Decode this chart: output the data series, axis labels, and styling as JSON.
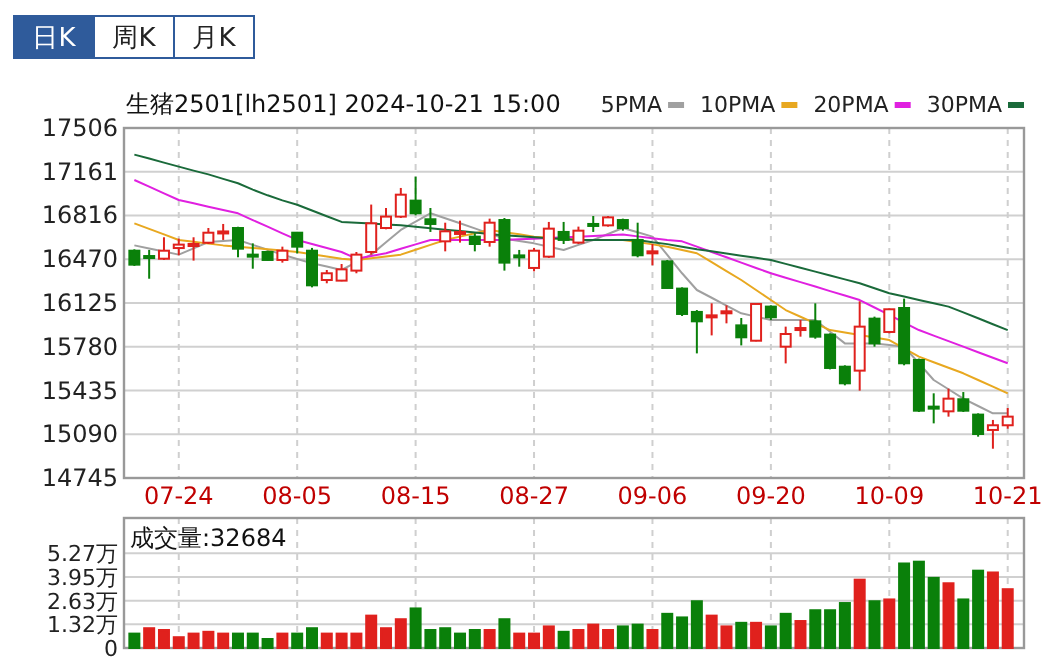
{
  "chart_data": [
    {
      "type": "candlestick",
      "title": "生猪2501[lh2501] 2024-10-21 15:00",
      "annotations": [
        "日K",
        "周K",
        "月K"
      ],
      "categories": [
        null,
        null,
        null,
        "07-24",
        null,
        null,
        null,
        null,
        null,
        null,
        null,
        "08-05",
        null,
        null,
        null,
        null,
        null,
        null,
        null,
        "08-15",
        null,
        null,
        null,
        null,
        null,
        null,
        null,
        "08-27",
        null,
        null,
        null,
        null,
        null,
        null,
        null,
        "09-06",
        null,
        null,
        null,
        null,
        null,
        null,
        null,
        "09-20",
        null,
        null,
        null,
        null,
        null,
        null,
        null,
        "10-09",
        null,
        null,
        null,
        null,
        null,
        null,
        null,
        "10-21"
      ],
      "ohlc": [
        [
          16538,
          16549,
          16418,
          16428
        ],
        [
          16496,
          16544,
          16317,
          16486
        ],
        [
          16475,
          16644,
          16465,
          16538
        ],
        [
          16559,
          16633,
          16502,
          16586
        ],
        [
          16575,
          16644,
          16460,
          16591
        ],
        [
          16601,
          16717,
          16591,
          16680
        ],
        [
          16680,
          16749,
          16623,
          16690
        ],
        [
          16717,
          16727,
          16486,
          16554
        ],
        [
          16507,
          16596,
          16396,
          16491
        ],
        [
          16528,
          16538,
          16460,
          16465
        ],
        [
          16465,
          16570,
          16444,
          16538
        ],
        [
          16680,
          16686,
          16517,
          16570
        ],
        [
          16538,
          16560,
          16249,
          16265
        ],
        [
          16307,
          16386,
          16281,
          16360
        ],
        [
          16302,
          16433,
          16297,
          16391
        ],
        [
          16381,
          16528,
          16360,
          16507
        ],
        [
          16528,
          16902,
          16507,
          16754
        ],
        [
          16717,
          16875,
          16707,
          16807
        ],
        [
          16807,
          17033,
          16796,
          16980
        ],
        [
          16933,
          17122,
          16817,
          16833
        ],
        [
          16786,
          16875,
          16686,
          16749
        ],
        [
          16612,
          16759,
          16533,
          16691
        ],
        [
          16675,
          16775,
          16602,
          16686
        ],
        [
          16649,
          16675,
          16533,
          16591
        ],
        [
          16607,
          16791,
          16570,
          16759
        ],
        [
          16780,
          16796,
          16381,
          16444
        ],
        [
          16501,
          16544,
          16412,
          16491
        ],
        [
          16402,
          16560,
          16375,
          16538
        ],
        [
          16491,
          16765,
          16481,
          16712
        ],
        [
          16686,
          16765,
          16591,
          16623
        ],
        [
          16602,
          16728,
          16591,
          16696
        ],
        [
          16749,
          16812,
          16686,
          16738
        ],
        [
          16738,
          16812,
          16728,
          16801
        ],
        [
          16780,
          16791,
          16696,
          16717
        ],
        [
          16623,
          16759,
          16486,
          16502
        ],
        [
          16523,
          16591,
          16423,
          16533
        ],
        [
          16454,
          16465,
          16239,
          16244
        ],
        [
          16239,
          16249,
          16023,
          16039
        ],
        [
          16055,
          16070,
          15728,
          15981
        ],
        [
          16018,
          16123,
          15870,
          16028
        ],
        [
          16050,
          16107,
          15965,
          16060
        ],
        [
          15949,
          16007,
          15791,
          15855
        ],
        [
          15828,
          16118,
          15823,
          16118
        ],
        [
          16097,
          16107,
          15991,
          16013
        ],
        [
          15781,
          15939,
          15649,
          15881
        ],
        [
          15918,
          15991,
          15860,
          15928
        ],
        [
          15981,
          16123,
          15844,
          15860
        ],
        [
          15876,
          15886,
          15602,
          15613
        ],
        [
          15623,
          15634,
          15476,
          15492
        ],
        [
          15592,
          16139,
          15434,
          15939
        ],
        [
          16002,
          16018,
          15781,
          15807
        ],
        [
          15897,
          16081,
          15886,
          16076
        ],
        [
          16086,
          16160,
          15634,
          15650
        ],
        [
          15676,
          15687,
          15266,
          15276
        ],
        [
          15308,
          15413,
          15176,
          15298
        ],
        [
          15271,
          15450,
          15229,
          15371
        ],
        [
          15366,
          15423,
          15266,
          15276
        ],
        [
          15245,
          15255,
          15071,
          15092
        ],
        [
          15124,
          15203,
          14976,
          15161
        ],
        [
          15161,
          15297,
          15134,
          15229
        ]
      ],
      "colors": [
        "#0a800a",
        "#0a800a",
        "#e0211d",
        "#e0211d",
        "#e0211d",
        "#e0211d",
        "#e0211d",
        "#0a800a",
        "#0a800a",
        "#0a800a",
        "#e0211d",
        "#0a800a",
        "#0a800a",
        "#e0211d",
        "#e0211d",
        "#e0211d",
        "#e0211d",
        "#e0211d",
        "#e0211d",
        "#0a800a",
        "#0a800a",
        "#e0211d",
        "#e0211d",
        "#0a800a",
        "#e0211d",
        "#0a800a",
        "#0a800a",
        "#e0211d",
        "#e0211d",
        "#0a800a",
        "#e0211d",
        "#0a800a",
        "#e0211d",
        "#0a800a",
        "#0a800a",
        "#e0211d",
        "#0a800a",
        "#0a800a",
        "#0a800a",
        "#e0211d",
        "#e0211d",
        "#0a800a",
        "#e0211d",
        "#0a800a",
        "#e0211d",
        "#e0211d",
        "#0a800a",
        "#0a800a",
        "#0a800a",
        "#e0211d",
        "#0a800a",
        "#e0211d",
        "#0a800a",
        "#0a800a",
        "#0a800a",
        "#e0211d",
        "#0a800a",
        "#0a800a",
        "#e0211d",
        "#e0211d"
      ],
      "series": [
        {
          "name": "5PMA",
          "type": "line",
          "color": "#a0a0a0",
          "values": [
            16580,
            16556,
            16531,
            16507,
            16557,
            16607,
            16615,
            16623,
            16584,
            16546,
            16507,
            16473,
            16439,
            16413,
            16386,
            16447,
            16507,
            16605,
            16702,
            16768,
            16833,
            16794,
            16754,
            16714,
            16673,
            16633,
            16615,
            16596,
            16570,
            16544,
            16584,
            16623,
            16670,
            16717,
            16683,
            16649,
            16505,
            16360,
            16228,
            16167,
            16105,
            16044,
            16018,
            15991,
            15991,
            15991,
            15991,
            15899,
            15807,
            15807,
            15807,
            15794,
            15781,
            15650,
            15518,
            15445,
            15371,
            15313,
            15255,
            15255
          ]
        },
        {
          "name": "10PMA",
          "type": "line",
          "color": "#e8a820",
          "values": [
            16754,
            16710,
            16667,
            16623,
            16609,
            16594,
            16580,
            16570,
            16560,
            16549,
            16539,
            16528,
            16510,
            16493,
            16475,
            16465,
            16479,
            16493,
            16507,
            16546,
            16584,
            16623,
            16649,
            16676,
            16702,
            16684,
            16667,
            16649,
            16640,
            16632,
            16623,
            16623,
            16623,
            16623,
            16606,
            16588,
            16570,
            16544,
            16518,
            16448,
            16377,
            16307,
            16228,
            16149,
            16070,
            16017,
            15965,
            15912,
            15892,
            15873,
            15853,
            15833,
            15768,
            15702,
            15658,
            15615,
            15571,
            15518,
            15466,
            15413
          ]
        },
        {
          "name": "20PMA",
          "type": "line",
          "color": "#e020e0",
          "values": [
            17096,
            17043,
            16990,
            16938,
            16912,
            16885,
            16859,
            16833,
            16780,
            16728,
            16675,
            16623,
            16591,
            16560,
            16528,
            16475,
            16497,
            16518,
            16553,
            16588,
            16623,
            16623,
            16623,
            16623,
            16623,
            16623,
            16628,
            16633,
            16639,
            16644,
            16649,
            16654,
            16660,
            16665,
            16651,
            16637,
            16623,
            16612,
            16570,
            16528,
            16486,
            16444,
            16402,
            16360,
            16325,
            16290,
            16255,
            16219,
            16184,
            16149,
            16090,
            16031,
            15971,
            15912,
            15868,
            15825,
            15781,
            15737,
            15694,
            15650
          ]
        },
        {
          "name": "30PMA",
          "type": "line",
          "color": "#1a6a3a",
          "values": [
            17296,
            17265,
            17233,
            17201,
            17170,
            17140,
            17105,
            17070,
            17020,
            16975,
            16935,
            16901,
            16855,
            16810,
            16765,
            16758,
            16752,
            16745,
            16738,
            16727,
            16715,
            16704,
            16693,
            16682,
            16670,
            16659,
            16652,
            16645,
            16637,
            16630,
            16623,
            16623,
            16623,
            16623,
            16623,
            16605,
            16590,
            16570,
            16550,
            16533,
            16516,
            16499,
            16482,
            16465,
            16434,
            16404,
            16373,
            16342,
            16312,
            16281,
            16242,
            16202,
            16176,
            16150,
            16123,
            16097,
            16051,
            16005,
            15958,
            15912
          ]
        }
      ],
      "ylim": [
        14745,
        17506
      ],
      "yticks": [
        14745,
        15090,
        15435,
        15780,
        16125,
        16470,
        16816,
        17161,
        17506
      ],
      "grid": true,
      "legend": "top right"
    },
    {
      "type": "bar",
      "title": "成交量:32684",
      "categories": [
        null,
        null,
        null,
        null,
        null,
        null,
        null,
        null,
        null,
        null,
        null,
        null,
        null,
        null,
        null,
        null,
        null,
        null,
        null,
        null,
        null,
        null,
        null,
        null,
        null,
        null,
        null,
        null,
        null,
        null,
        null,
        null,
        null,
        null,
        null,
        null,
        null,
        null,
        null,
        null,
        null,
        null,
        null,
        null,
        null,
        null,
        null,
        null,
        null,
        null,
        null,
        null,
        null,
        null,
        null,
        null,
        null,
        null,
        null,
        null
      ],
      "values": [
        0.8,
        1.1,
        1.0,
        0.6,
        0.8,
        0.9,
        0.8,
        0.8,
        0.8,
        0.5,
        0.8,
        0.8,
        1.1,
        0.8,
        0.8,
        0.8,
        1.8,
        1.1,
        1.6,
        2.2,
        1.0,
        1.1,
        0.8,
        1.0,
        1.0,
        1.6,
        0.8,
        0.8,
        1.2,
        0.9,
        1.0,
        1.3,
        1.0,
        1.2,
        1.3,
        1.0,
        1.9,
        1.7,
        2.6,
        1.8,
        1.2,
        1.4,
        1.4,
        1.2,
        1.9,
        1.5,
        2.1,
        2.1,
        2.5,
        3.8,
        2.6,
        2.7,
        4.7,
        4.8,
        3.9,
        3.6,
        2.7,
        4.3,
        4.2,
        3.27
      ],
      "colors": [
        "#0a800a",
        "#e0211d",
        "#e0211d",
        "#e0211d",
        "#e0211d",
        "#e0211d",
        "#e0211d",
        "#0a800a",
        "#0a800a",
        "#0a800a",
        "#e0211d",
        "#0a800a",
        "#0a800a",
        "#e0211d",
        "#e0211d",
        "#e0211d",
        "#e0211d",
        "#e0211d",
        "#e0211d",
        "#0a800a",
        "#0a800a",
        "#0a800a",
        "#0a800a",
        "#0a800a",
        "#e0211d",
        "#0a800a",
        "#e0211d",
        "#e0211d",
        "#e0211d",
        "#0a800a",
        "#e0211d",
        "#e0211d",
        "#e0211d",
        "#0a800a",
        "#0a800a",
        "#e0211d",
        "#0a800a",
        "#0a800a",
        "#0a800a",
        "#e0211d",
        "#e0211d",
        "#0a800a",
        "#e0211d",
        "#0a800a",
        "#0a800a",
        "#e0211d",
        "#0a800a",
        "#0a800a",
        "#0a800a",
        "#e0211d",
        "#0a800a",
        "#e0211d",
        "#0a800a",
        "#0a800a",
        "#0a800a",
        "#e0211d",
        "#0a800a",
        "#0a800a",
        "#e0211d",
        "#e0211d"
      ],
      "ylim": [
        0,
        7.23
      ],
      "yticks": [
        0,
        {
          "value": 1.32,
          "label": "1.32万"
        },
        {
          "value": 2.63,
          "label": "2.63万"
        },
        {
          "value": 3.95,
          "label": "3.95万"
        },
        {
          "value": 5.27,
          "label": "5.27万"
        }
      ],
      "grid": true,
      "tick_labels": "y"
    }
  ]
}
